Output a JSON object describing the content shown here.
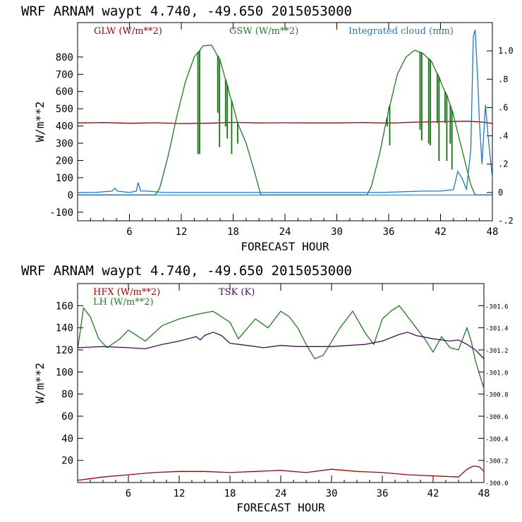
{
  "chart_data": [
    {
      "type": "line",
      "title": "WRF   ARNAM waypt     4.740, -49.650  2015053000",
      "xlabel": "FORECAST HOUR",
      "ylabel": "W/m**2",
      "xlim": [
        0,
        48
      ],
      "ylim": [
        -150,
        1000
      ],
      "y2lim": [
        -0.2,
        1.2
      ],
      "xticks": [
        "6",
        "12",
        "18",
        "24",
        "30",
        "36",
        "42",
        "48"
      ],
      "yticks": [
        "-100",
        "0",
        "100",
        "200",
        "300",
        "400",
        "500",
        "600",
        "700",
        "800"
      ],
      "y2ticks": [
        "-.2",
        "0",
        ".2",
        ".4",
        ".6",
        ".8",
        "1.0"
      ],
      "colors": {
        "glw": "#a80000",
        "gsw": "#1f7a1f",
        "cloud": "#1f77c8"
      },
      "series": [
        {
          "name": "GLW (W/m**2)",
          "axis": "left",
          "x": [
            0,
            3,
            6,
            9,
            12,
            15,
            18,
            21,
            24,
            27,
            30,
            33,
            36,
            39,
            42,
            45,
            46.5,
            48
          ],
          "y": [
            418,
            420,
            416,
            419,
            414,
            416,
            421,
            418,
            419,
            418,
            418,
            420,
            417,
            422,
            425,
            428,
            424,
            415
          ]
        },
        {
          "name": "GSW (W/m**2)",
          "axis": "left",
          "x": [
            0,
            9,
            9.5,
            10.5,
            11.5,
            12.5,
            13.5,
            14.5,
            15.5,
            16.5,
            17.5,
            18.5,
            19.5,
            20.5,
            21.2,
            33.5,
            34,
            35,
            36,
            37,
            38,
            39,
            40,
            41,
            42,
            43,
            44,
            44.8,
            45.5,
            46,
            48
          ],
          "y": [
            0,
            0,
            40,
            230,
            460,
            660,
            800,
            865,
            870,
            780,
            600,
            420,
            300,
            130,
            0,
            0,
            50,
            250,
            500,
            700,
            800,
            840,
            820,
            770,
            660,
            540,
            360,
            200,
            60,
            0,
            0
          ],
          "dips": [
            [
              13.9,
              240
            ],
            [
              14.1,
              240
            ],
            [
              16.2,
              480
            ],
            [
              16.4,
              280
            ],
            [
              17.1,
              400
            ],
            [
              17.3,
              330
            ],
            [
              17.8,
              240
            ],
            [
              18.5,
              300
            ],
            [
              35.8,
              400
            ],
            [
              36.1,
              290
            ],
            [
              39.6,
              380
            ],
            [
              39.8,
              320
            ],
            [
              40.6,
              300
            ],
            [
              40.8,
              290
            ],
            [
              41.6,
              420
            ],
            [
              41.8,
              200
            ],
            [
              42.5,
              420
            ],
            [
              42.7,
              200
            ],
            [
              43.1,
              300
            ],
            [
              43.3,
              150
            ]
          ]
        },
        {
          "name": "Integrated cloud (mm)",
          "axis": "right",
          "x": [
            0,
            2,
            4,
            4.3,
            4.6,
            6,
            6.8,
            7,
            7.3,
            8,
            10,
            14,
            20,
            30,
            35,
            40,
            42,
            43.5,
            44,
            44.5,
            45,
            45.5,
            45.8,
            46,
            46.3,
            46.5,
            46.8,
            47.2,
            47.5,
            48
          ],
          "y": [
            0,
            0,
            0.01,
            0.03,
            0.01,
            0,
            0.01,
            0.07,
            0.01,
            0.01,
            0,
            0,
            0,
            0,
            0,
            0.01,
            0.01,
            0.02,
            0.15,
            0.1,
            0.02,
            0.3,
            1.1,
            1.15,
            0.8,
            0.5,
            0.2,
            0.62,
            0.4,
            0.1
          ]
        }
      ]
    },
    {
      "type": "line",
      "title": "WRF   ARNAM waypt     4.740, -49.650  2015053000",
      "xlabel": "FORECAST HOUR",
      "ylabel": "W/m**2",
      "xlim": [
        0,
        48
      ],
      "ylim": [
        0,
        180
      ],
      "y2lim": [
        300.0,
        301.8
      ],
      "xticks": [
        "6",
        "12",
        "18",
        "24",
        "30",
        "36",
        "42",
        "48"
      ],
      "yticks": [
        "20",
        "40",
        "60",
        "80",
        "100",
        "120",
        "140",
        "160"
      ],
      "y2ticks": [
        "-300.0",
        "-300.2",
        "-300.4",
        "-300.6",
        "-300.8",
        "-301.0",
        "-301.2",
        "-301.4",
        "-301.6"
      ],
      "colors": {
        "hfx": "#a80000",
        "lh": "#1f7a1f",
        "tsk": "#4b0a5a"
      },
      "series": [
        {
          "name": "HFX (W/m**2)",
          "axis": "left",
          "x": [
            0,
            3,
            6,
            9,
            12,
            15,
            18,
            21,
            24,
            27,
            30,
            33,
            36,
            39,
            42,
            45,
            46,
            46.8,
            47.5,
            48
          ],
          "y": [
            2,
            5,
            7,
            9,
            10,
            10,
            9,
            10,
            11,
            9,
            12,
            10,
            9,
            7,
            6,
            5,
            12,
            15,
            14,
            10
          ]
        },
        {
          "name": "LH  (W/m**2)",
          "axis": "left",
          "x": [
            0,
            0.7,
            1.5,
            2.5,
            3.5,
            5,
            6,
            8,
            10,
            12,
            14,
            16,
            18,
            19,
            21,
            22.5,
            24,
            25,
            26,
            27,
            28,
            29,
            31,
            32.5,
            34,
            35,
            36,
            37,
            38,
            39,
            40,
            41,
            42,
            43,
            44,
            45,
            46,
            46.5,
            47,
            48
          ],
          "y": [
            120,
            158,
            150,
            130,
            122,
            130,
            138,
            128,
            142,
            148,
            152,
            155,
            145,
            130,
            148,
            140,
            155,
            150,
            140,
            125,
            112,
            115,
            140,
            155,
            135,
            125,
            148,
            155,
            160,
            150,
            140,
            130,
            118,
            132,
            122,
            120,
            140,
            128,
            110,
            85
          ]
        },
        {
          "name": "TSK (K)",
          "axis": "right",
          "x": [
            0,
            3,
            6,
            8,
            10,
            12,
            14,
            14.5,
            15,
            16,
            17,
            18,
            20,
            22,
            24,
            26,
            28,
            30,
            32,
            34,
            36,
            38,
            39,
            40,
            42,
            44,
            45,
            46,
            47,
            48
          ],
          "y": [
            301.22,
            301.23,
            301.22,
            301.21,
            301.25,
            301.28,
            301.32,
            301.29,
            301.33,
            301.36,
            301.33,
            301.26,
            301.24,
            301.22,
            301.24,
            301.23,
            301.23,
            301.23,
            301.24,
            301.25,
            301.28,
            301.34,
            301.36,
            301.33,
            301.3,
            301.28,
            301.29,
            301.25,
            301.2,
            301.12
          ]
        }
      ]
    }
  ]
}
